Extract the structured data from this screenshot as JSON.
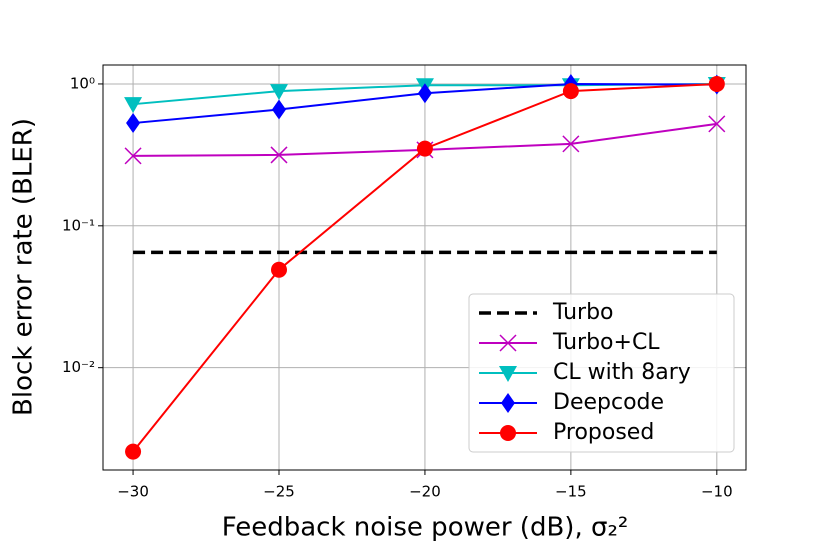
{
  "chart_data": {
    "type": "line",
    "x_label": "Feedback noise power (dB), σ₂²",
    "y_label": "Block error rate (BLER)",
    "x": [
      -30,
      -25,
      -20,
      -15,
      -10
    ],
    "series": [
      {
        "name": "Turbo",
        "color": "#000000",
        "dash": true,
        "marker": "none",
        "values": [
          0.065,
          0.065,
          0.065,
          0.065,
          0.065
        ]
      },
      {
        "name": "Turbo+CL",
        "color": "#bf00bf",
        "marker": "x",
        "values": [
          0.311,
          0.316,
          0.343,
          0.378,
          0.523
        ]
      },
      {
        "name": "CL with 8ary",
        "color": "#00bfbf",
        "marker": "triangle-down",
        "values": [
          0.72,
          0.89,
          0.98,
          0.98,
          1.0
        ]
      },
      {
        "name": "Deepcode",
        "color": "#0000ff",
        "marker": "diamond",
        "values": [
          0.53,
          0.66,
          0.86,
          1.0,
          0.99
        ]
      },
      {
        "name": "Proposed",
        "color": "#ff0000",
        "marker": "circle",
        "values": [
          0.00256,
          0.049,
          0.35,
          0.89,
          1.0
        ]
      }
    ],
    "xlim": [
      -31.03,
      -9.0
    ],
    "ylim": [
      0.0019,
      1.36
    ],
    "y_scale": "log",
    "xticks": [
      {
        "value": -30,
        "label": "−30"
      },
      {
        "value": -25,
        "label": "−25"
      },
      {
        "value": -20,
        "label": "−20"
      },
      {
        "value": -15,
        "label": "−15"
      },
      {
        "value": -10,
        "label": "−10"
      }
    ],
    "yticks": [
      {
        "value": 0.01,
        "label": "10⁻²"
      },
      {
        "value": 0.1,
        "label": "10⁻¹"
      },
      {
        "value": 1,
        "label": "10⁰"
      }
    ],
    "grid": true,
    "legend_position": "lower right"
  }
}
